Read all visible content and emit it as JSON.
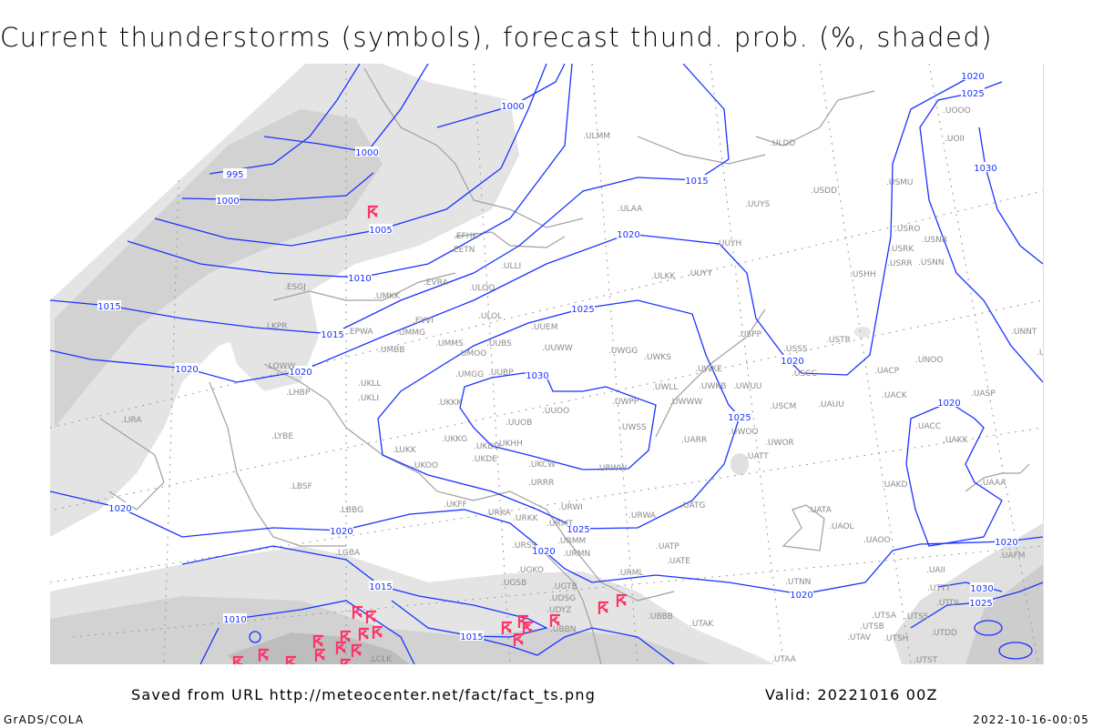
{
  "title": "Current thunderstorms (symbols), forecast thund. prob. (%, shaded)",
  "footer": {
    "saved_from": "Saved from URL http://meteocenter.net/fact/fact_ts.png",
    "valid": "Valid: 20221016 00Z",
    "software": "GrADS/COLA",
    "generated": "2022-10-16-00:05"
  },
  "colors": {
    "isobar": "#1a33ff",
    "coast": "#a0a0a0",
    "thunderstorm_symbol": "#ff3366",
    "shade_light": "#e4e4e4",
    "shade_mid": "#d2d2d2",
    "shade_dark": "#bdbdbd"
  },
  "isobar_labels": [
    "995",
    "1000",
    "1000",
    "1000",
    "1005",
    "1010",
    "1015",
    "1015",
    "1015",
    "1020",
    "1020",
    "1020",
    "1025",
    "1030",
    "1025",
    "1020",
    "1020",
    "1020",
    "1020",
    "1025",
    "1020",
    "1015",
    "1010",
    "1015",
    "1020",
    "1020",
    "1025",
    "1020",
    "1025",
    "1030",
    "1030"
  ],
  "stations": [
    "ULAA",
    "EFHK",
    "EETN",
    "ULLI",
    "EVRA",
    "ULOO",
    "UMKK",
    "EYVI",
    "ULOL",
    "UMMG",
    "UUEM",
    "UMMS",
    "UMOO",
    "UUBS",
    "UUWW",
    "UMBB",
    "UWGG",
    "UWKS",
    "EPWA",
    "ESGJ",
    "LKPR",
    "LOWW",
    "LHBP",
    "UKLL",
    "UKLI",
    "UMGG",
    "UUBP",
    "UKKK",
    "UUOO",
    "UUOB",
    "UWPP",
    "UWSS",
    "UWLL",
    "UWWW",
    "UWKE",
    "UWKB",
    "UWUU",
    "UKHH",
    "UKKG",
    "UKDD",
    "UKDE",
    "UKCW",
    "URWW",
    "UKOO",
    "LUKK",
    "LBSF",
    "LBBG",
    "UKFF",
    "URKA",
    "URKK",
    "URRR",
    "URWI",
    "URWA",
    "UATG",
    "URMT",
    "URMM",
    "URMN",
    "URSS",
    "UGKO",
    "UGSB",
    "UGTB",
    "UDSG",
    "UDYZ",
    "UBBN",
    "URML",
    "UATP",
    "UATE",
    "UBBB",
    "UTAK",
    "UTAA",
    "UTAV",
    "UTSB",
    "UTSA",
    "UTSS",
    "UTSH",
    "UTDD",
    "UTST",
    "UTNN",
    "UATA",
    "UAOL",
    "UAOO",
    "UAKD",
    "UACC",
    "UAKK",
    "UAAA",
    "UAFM",
    "UAII",
    "UTTT",
    "UTDL",
    "UATT",
    "UARR",
    "UWOO",
    "UWOR",
    "USCM",
    "UAUU",
    "USCC",
    "USSS",
    "USTR",
    "USPP",
    "USHH",
    "USRR",
    "USNN",
    "USRK",
    "USNR",
    "USRO",
    "USMU",
    "USDD",
    "UUYS",
    "UUYH",
    "UUYY",
    "ULKK",
    "UOII",
    "UOOO",
    "ULDD",
    "ULMM",
    "UNNT",
    "UNBB",
    "UNOO",
    "UACP",
    "UACK",
    "UASP",
    "LIRA",
    "LYBE",
    "LGBA",
    "LCLK"
  ],
  "thunderstorm_count": 21
}
